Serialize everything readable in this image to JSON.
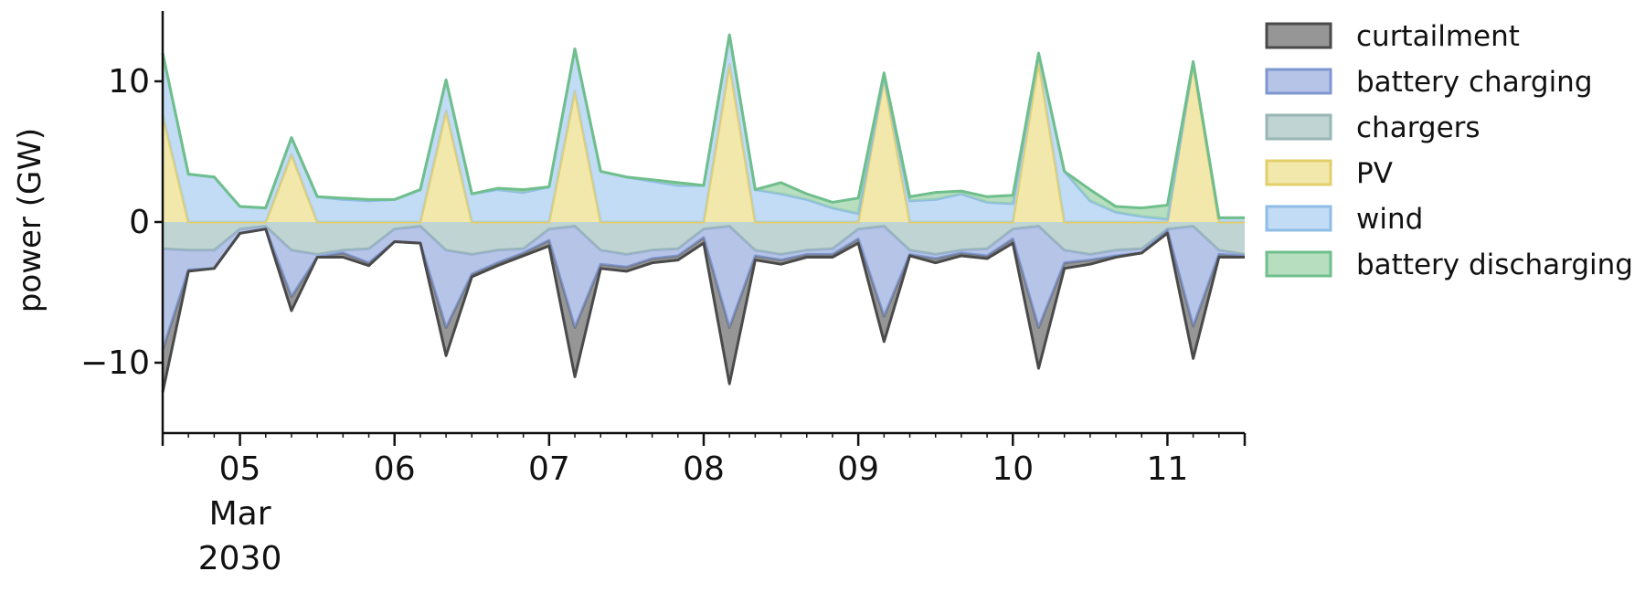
{
  "chart_data": {
    "type": "area",
    "ylabel": "power (GW)",
    "ylim": [
      -15,
      15
    ],
    "xlim": [
      "2030-03-04T12:00",
      "2030-03-11T12:00"
    ],
    "yticks": [
      -10,
      0,
      10
    ],
    "ytick_labels": [
      "−10",
      "0",
      "10"
    ],
    "xticks": [
      "2030-03-05",
      "2030-03-06",
      "2030-03-07",
      "2030-03-08",
      "2030-03-09",
      "2030-03-10",
      "2030-03-11"
    ],
    "xtick_labels": [
      "05",
      "06",
      "07",
      "08",
      "09",
      "10",
      "11"
    ],
    "xtick_sublabels": [
      "Mar",
      "2030"
    ],
    "legend_position": "right, outside plot",
    "x": [
      "2030-03-04T12:00",
      "2030-03-04T16:00",
      "2030-03-04T20:00",
      "2030-03-05T00:00",
      "2030-03-05T04:00",
      "2030-03-05T08:00",
      "2030-03-05T12:00",
      "2030-03-05T16:00",
      "2030-03-05T20:00",
      "2030-03-06T00:00",
      "2030-03-06T04:00",
      "2030-03-06T08:00",
      "2030-03-06T12:00",
      "2030-03-06T16:00",
      "2030-03-06T20:00",
      "2030-03-07T00:00",
      "2030-03-07T04:00",
      "2030-03-07T08:00",
      "2030-03-07T12:00",
      "2030-03-07T16:00",
      "2030-03-07T20:00",
      "2030-03-08T00:00",
      "2030-03-08T04:00",
      "2030-03-08T08:00",
      "2030-03-08T12:00",
      "2030-03-08T16:00",
      "2030-03-08T20:00",
      "2030-03-09T00:00",
      "2030-03-09T04:00",
      "2030-03-09T08:00",
      "2030-03-09T12:00",
      "2030-03-09T16:00",
      "2030-03-09T20:00",
      "2030-03-10T00:00",
      "2030-03-10T04:00",
      "2030-03-10T08:00",
      "2030-03-10T12:00",
      "2030-03-10T16:00",
      "2030-03-10T20:00",
      "2030-03-11T00:00",
      "2030-03-11T04:00",
      "2030-03-11T08:00",
      "2030-03-11T12:00"
    ],
    "series": [
      {
        "name": "chargers",
        "color": "#a9c4c3",
        "edge": "#98b6b5",
        "side": "negative",
        "values": [
          -1.9,
          -2.0,
          -2.0,
          -0.5,
          -0.3,
          -2.0,
          -2.3,
          -2.0,
          -1.9,
          -0.5,
          -0.3,
          -2.0,
          -2.3,
          -2.0,
          -1.9,
          -0.5,
          -0.3,
          -2.0,
          -2.3,
          -2.0,
          -1.9,
          -0.5,
          -0.3,
          -2.0,
          -2.3,
          -2.0,
          -1.9,
          -0.5,
          -0.3,
          -2.0,
          -2.3,
          -2.0,
          -1.9,
          -0.5,
          -0.3,
          -2.0,
          -2.3,
          -2.0,
          -1.9,
          -0.5,
          -0.3,
          -2.0,
          -2.3
        ]
      },
      {
        "name": "battery charging",
        "color": "#9aadde",
        "edge": "#7f97d1",
        "side": "negative",
        "values": [
          -7.2,
          -1.4,
          -1.3,
          -0.3,
          -0.2,
          -3.3,
          -0.2,
          -0.2,
          -1.0,
          -0.9,
          -1.2,
          -5.5,
          -1.4,
          -0.9,
          -0.3,
          -0.8,
          -7.2,
          -1.0,
          -0.9,
          -0.6,
          -0.5,
          -0.6,
          -7.2,
          -0.4,
          -0.4,
          -0.3,
          -0.4,
          -0.7,
          -6.4,
          -0.3,
          -0.3,
          -0.2,
          -0.5,
          -0.7,
          -7.2,
          -0.9,
          -0.4,
          -0.4,
          -0.3,
          -0.1,
          -7.1,
          -0.3,
          -0.1
        ]
      },
      {
        "name": "curtailment",
        "color": "#6e6e6e",
        "edge": "#4a4a4a",
        "side": "negative",
        "values": [
          -3.0,
          -0.1,
          0.0,
          0.0,
          0.0,
          -1.0,
          0.0,
          -0.3,
          -0.2,
          0.0,
          0.0,
          -2.0,
          -0.2,
          -0.2,
          -0.2,
          -0.4,
          -3.5,
          -0.3,
          -0.3,
          -0.3,
          -0.3,
          -0.4,
          -4.0,
          -0.3,
          -0.3,
          -0.2,
          -0.2,
          -0.3,
          -1.8,
          -0.1,
          -0.3,
          -0.2,
          -0.2,
          -0.3,
          -2.9,
          -0.4,
          -0.3,
          -0.1,
          0.0,
          -0.2,
          -2.3,
          -0.2,
          -0.1
        ]
      },
      {
        "name": "PV",
        "color": "#eedf8c",
        "edge": "#e3cf6a",
        "side": "positive",
        "values": [
          7.6,
          0.0,
          0.0,
          0.0,
          0.0,
          4.8,
          0.0,
          0.0,
          0.0,
          0.0,
          0.0,
          7.9,
          0.0,
          0.0,
          0.0,
          0.0,
          9.3,
          0.0,
          0.0,
          0.0,
          0.0,
          0.0,
          11.2,
          0.0,
          0.0,
          0.0,
          0.0,
          0.0,
          10.2,
          0.0,
          0.0,
          0.0,
          0.0,
          0.0,
          11.4,
          0.0,
          0.0,
          0.0,
          0.0,
          0.0,
          11.2,
          0.0,
          0.0
        ]
      },
      {
        "name": "wind",
        "color": "#a9cff0",
        "edge": "#8fbde6",
        "side": "positive",
        "values": [
          4.4,
          3.4,
          3.2,
          1.1,
          1.0,
          1.2,
          1.8,
          1.6,
          1.5,
          1.6,
          2.3,
          2.2,
          2.0,
          2.3,
          2.1,
          2.5,
          3.0,
          3.6,
          3.2,
          2.9,
          2.6,
          2.6,
          2.1,
          2.3,
          2.0,
          1.6,
          1.0,
          0.6,
          0.2,
          1.5,
          1.6,
          2.0,
          1.4,
          1.3,
          0.6,
          3.6,
          1.5,
          0.7,
          0.4,
          0.2,
          0.2,
          0.3,
          0.3
        ]
      },
      {
        "name": "battery discharging",
        "color": "#9ad1a6",
        "edge": "#6fbf8c",
        "side": "positive",
        "values": [
          0.0,
          0.0,
          0.0,
          0.0,
          0.0,
          0.0,
          0.0,
          0.1,
          0.1,
          0.0,
          0.0,
          0.0,
          0.0,
          0.1,
          0.2,
          0.0,
          0.0,
          0.0,
          0.0,
          0.1,
          0.2,
          0.0,
          0.0,
          0.0,
          0.8,
          0.4,
          0.4,
          1.1,
          0.2,
          0.3,
          0.5,
          0.2,
          0.4,
          0.6,
          0.0,
          0.0,
          0.8,
          0.4,
          0.6,
          1.0,
          0.0,
          0.0,
          0.0
        ]
      }
    ]
  }
}
